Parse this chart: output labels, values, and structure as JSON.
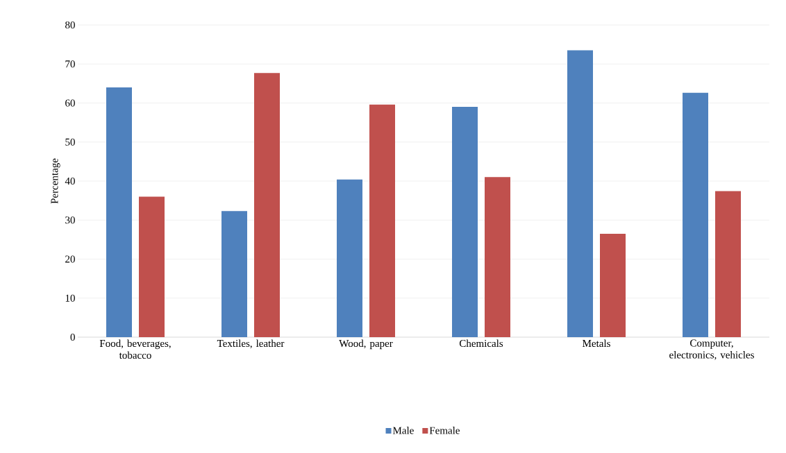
{
  "chart_data": {
    "type": "bar",
    "ylabel": "Percentage",
    "categories": [
      "Food, beverages, tobacco",
      "Textiles, leather",
      "Wood, paper",
      "Chemicals",
      "Metals",
      "Computer, electronics, vehicles"
    ],
    "series": [
      {
        "name": "Male",
        "color": "#4f81bd",
        "values": [
          64,
          32.3,
          40.4,
          59,
          73.5,
          62.6
        ]
      },
      {
        "name": "Female",
        "color": "#c0504d",
        "values": [
          36,
          67.7,
          59.6,
          41,
          26.5,
          37.4
        ]
      }
    ],
    "ylim": [
      0,
      80
    ],
    "yticks": [
      0,
      10,
      20,
      30,
      40,
      50,
      60,
      70,
      80
    ],
    "grid": "y",
    "legend": "bottom"
  }
}
